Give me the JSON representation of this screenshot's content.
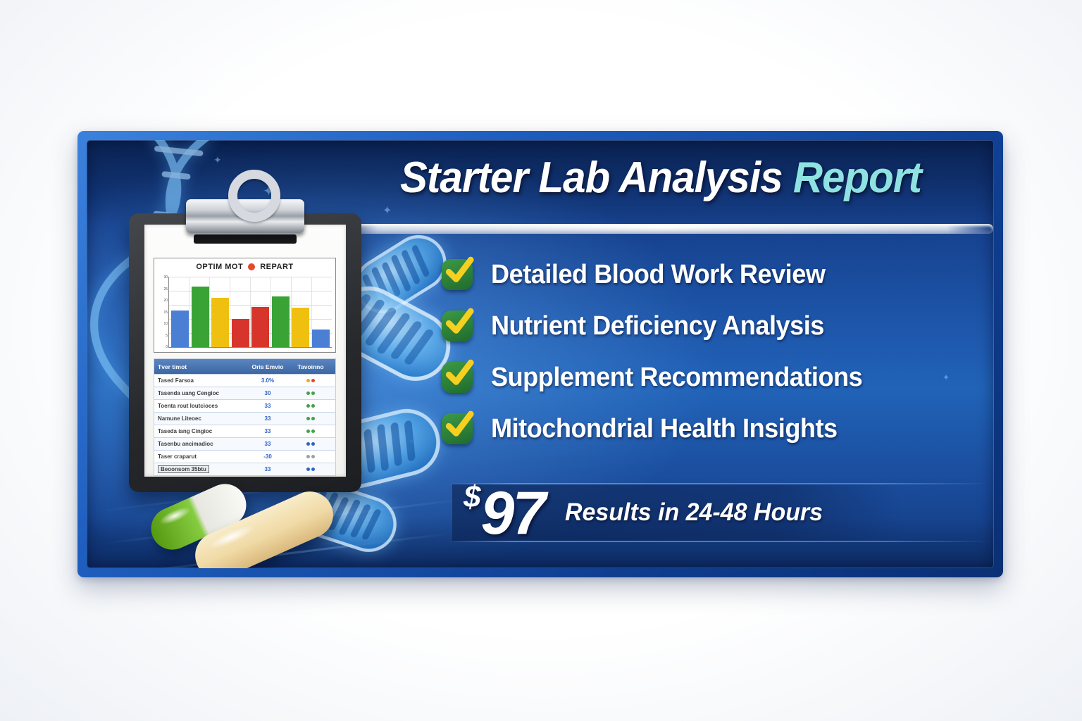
{
  "title": {
    "main": "Starter Lab Analysis",
    "accent": "Report"
  },
  "checklist": {
    "items": [
      "Detailed Blood Work Review",
      "Nutrient Deficiency Analysis",
      "Supplement Recommendations",
      "Mitochondrial Health Insights"
    ]
  },
  "price": {
    "currency": "$",
    "amount": "97",
    "note": "Results in 24-48 Hours"
  },
  "clipboard": {
    "report_header": {
      "left": "OPTIM MOT",
      "right": "REPART"
    },
    "table": {
      "headers": [
        "Tver timot",
        "Oris Emvio",
        "Tavoinno"
      ],
      "rows": [
        {
          "label": "Tased Farsoa",
          "value": "3.0%",
          "status": "mixed",
          "boxed": false
        },
        {
          "label": "Tasenda uang Cengioc",
          "value": "30",
          "status": "good",
          "boxed": false
        },
        {
          "label": "Toenta rout loutcioces",
          "value": "33",
          "status": "good",
          "boxed": false
        },
        {
          "label": "Namune Liteoec",
          "value": "33",
          "status": "good",
          "boxed": false
        },
        {
          "label": "Taseda iang Cingioc",
          "value": "33",
          "status": "good",
          "boxed": false
        },
        {
          "label": "Tasenbu ancimadioc",
          "value": "33",
          "status": "info",
          "boxed": false
        },
        {
          "label": "Taser craparut",
          "value": "-30",
          "status": "neutral",
          "boxed": false
        },
        {
          "label": "Beoonsom 35btu",
          "value": "33",
          "status": "info",
          "boxed": true
        }
      ]
    }
  },
  "chart_data": {
    "type": "bar",
    "title": "OPTIM MOT ● REPART",
    "categories": [
      "",
      "",
      "",
      "",
      "",
      "",
      "",
      ""
    ],
    "values": [
      52,
      86,
      70,
      40,
      57,
      72,
      56,
      25
    ],
    "colors": [
      "#4a7fd4",
      "#3aa336",
      "#f0c010",
      "#d7352b",
      "#d7352b",
      "#3aa336",
      "#f0c010",
      "#4a7fd4"
    ],
    "xlabel": "",
    "ylabel": "",
    "ylim": [
      0,
      100
    ],
    "ytick_labels": [
      "30",
      "25",
      "20",
      "15",
      "10",
      "5",
      "0"
    ],
    "grid": true,
    "legend_position": "top"
  },
  "status_palette": {
    "good": [
      "#43a047",
      "#43a047"
    ],
    "mixed": [
      "#f2a71b",
      "#e8472b"
    ],
    "info": [
      "#2f62c4",
      "#2f62c4"
    ],
    "neutral": [
      "#9aa0a6",
      "#9aa0a6"
    ]
  },
  "colors": {
    "frame_blue": "#1f5fc0",
    "background_navy": "#16418d",
    "title_accent": "#8fe2e2",
    "check_green": "#2f8a3a",
    "check_yellow": "#f5d021",
    "price_band_navy": "#0d2658",
    "table_header_blue": "#3c67a4"
  }
}
